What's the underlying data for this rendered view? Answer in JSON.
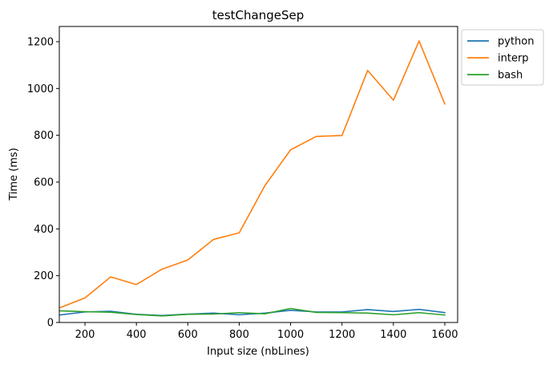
{
  "chart_data": {
    "type": "line",
    "title": "testChangeSep",
    "xlabel": "Input size (nbLines)",
    "ylabel": "Time (ms)",
    "xlim": [
      100,
      1650
    ],
    "ylim": [
      0,
      1265
    ],
    "xticks": [
      200,
      400,
      600,
      800,
      1000,
      1200,
      1400,
      1600
    ],
    "yticks": [
      0,
      200,
      400,
      600,
      800,
      1000,
      1200
    ],
    "grid": false,
    "legend_position": "outside-top-right",
    "x": [
      100,
      200,
      300,
      400,
      500,
      600,
      700,
      800,
      900,
      1000,
      1100,
      1200,
      1300,
      1400,
      1500,
      1600
    ],
    "series": [
      {
        "name": "python",
        "color": "#1f77b4",
        "values": [
          32,
          45,
          48,
          35,
          30,
          36,
          40,
          33,
          40,
          52,
          45,
          45,
          55,
          47,
          56,
          42
        ]
      },
      {
        "name": "interp",
        "color": "#ff7f0e",
        "values": [
          62,
          105,
          195,
          162,
          228,
          267,
          355,
          383,
          585,
          738,
          795,
          799,
          1077,
          950,
          1203,
          934
        ]
      },
      {
        "name": "bash",
        "color": "#2ca02c",
        "values": [
          50,
          46,
          44,
          34,
          28,
          35,
          36,
          42,
          37,
          60,
          43,
          42,
          40,
          33,
          42,
          32
        ]
      }
    ]
  }
}
